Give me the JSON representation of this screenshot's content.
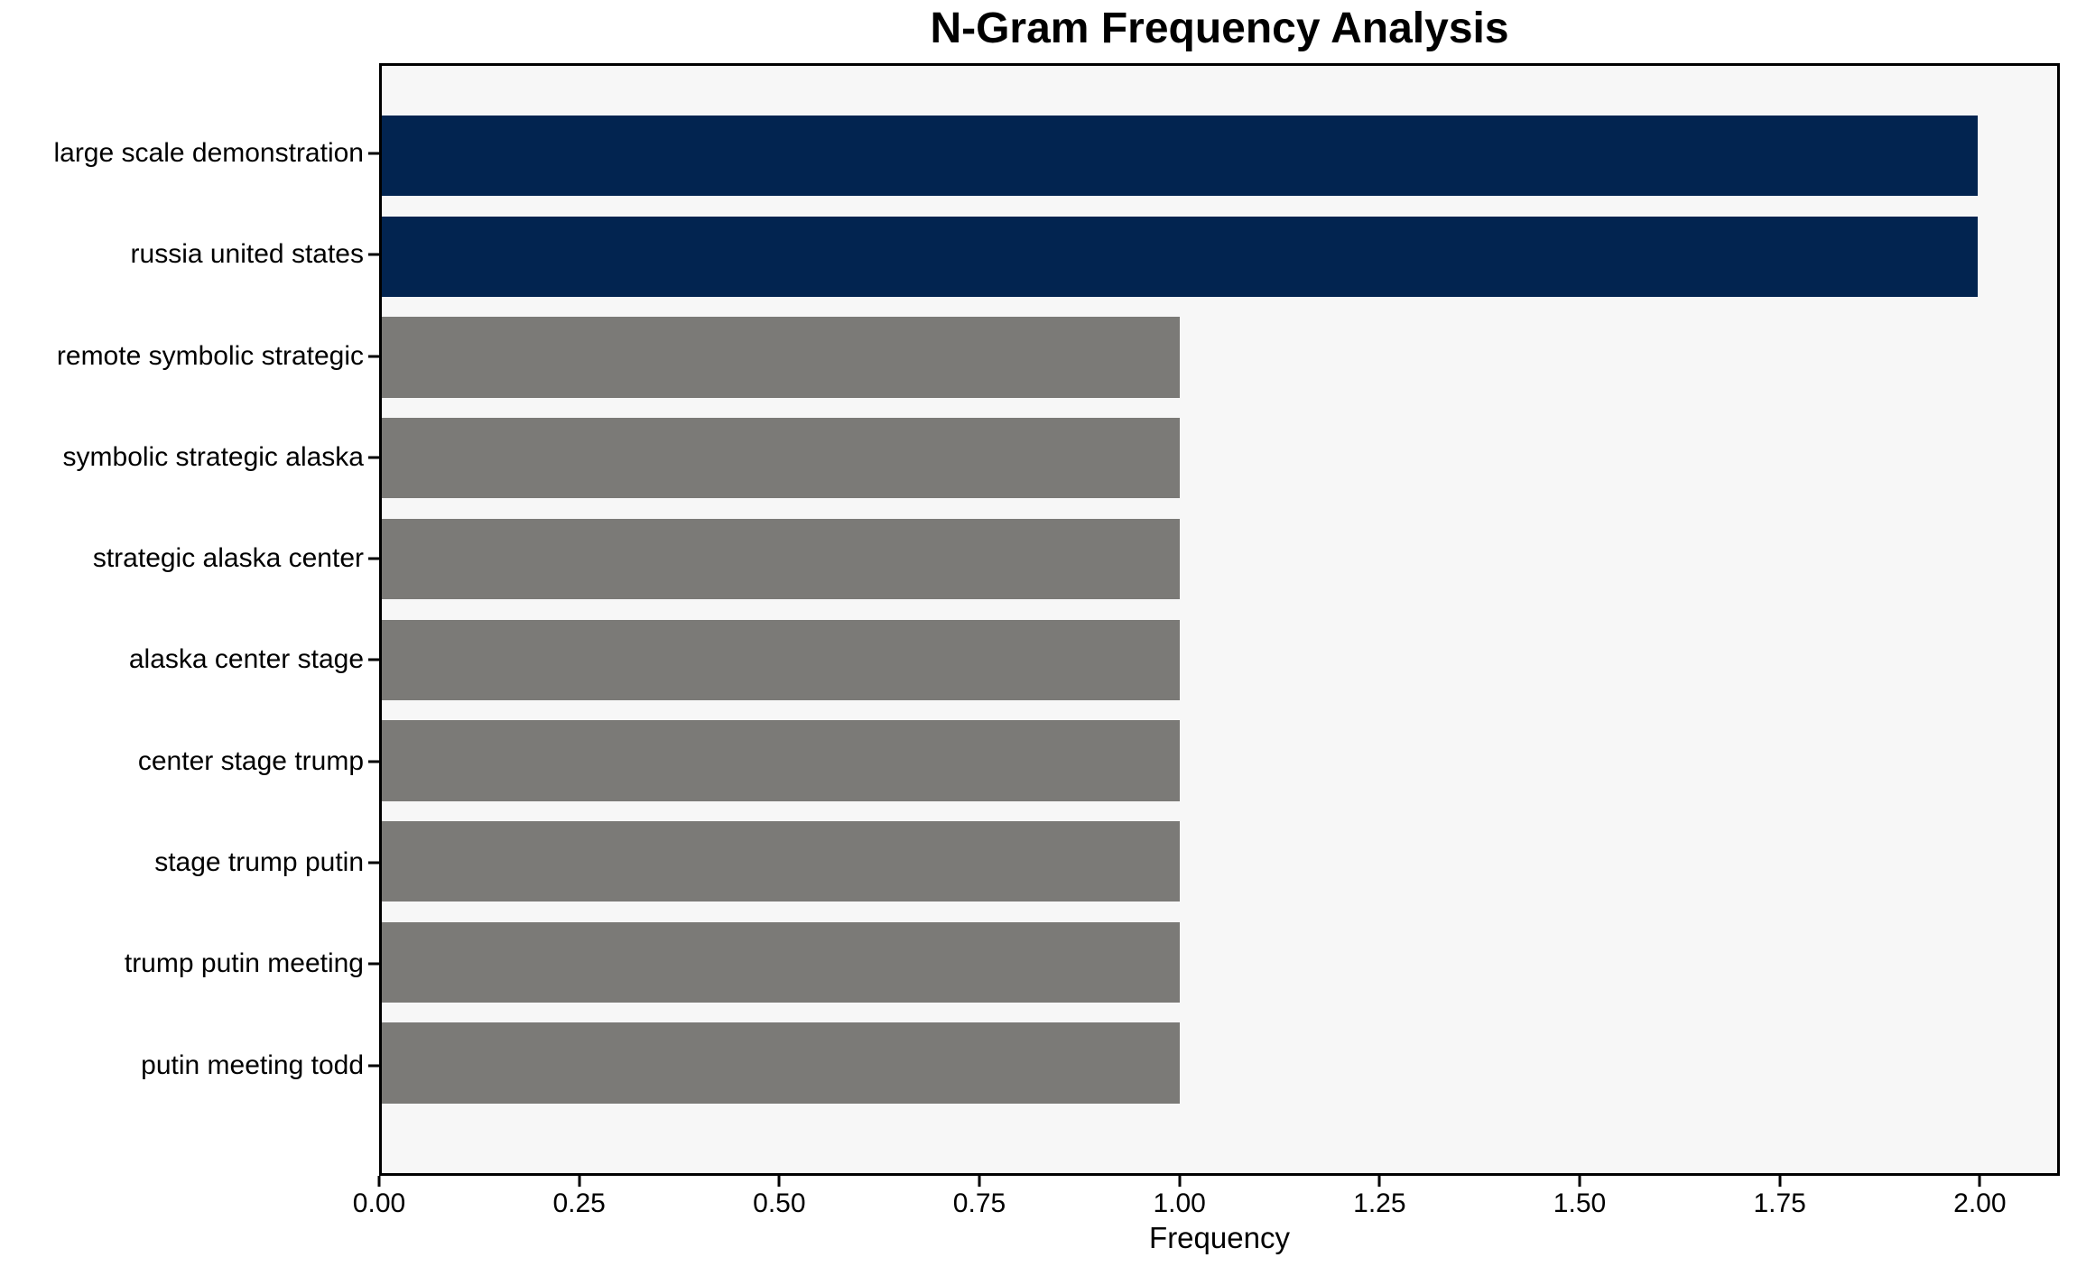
{
  "chart_data": {
    "type": "bar",
    "orientation": "horizontal",
    "title": "N-Gram Frequency Analysis",
    "xlabel": "Frequency",
    "ylabel": "",
    "categories": [
      "large scale demonstration",
      "russia united states",
      "remote symbolic strategic",
      "symbolic strategic alaska",
      "strategic alaska center",
      "alaska center stage",
      "center stage trump",
      "stage trump putin",
      "trump putin meeting",
      "putin meeting todd"
    ],
    "values": [
      2,
      2,
      1,
      1,
      1,
      1,
      1,
      1,
      1,
      1
    ],
    "bar_colors": [
      "#022450",
      "#022450",
      "#7b7a77",
      "#7b7a77",
      "#7b7a77",
      "#7b7a77",
      "#7b7a77",
      "#7b7a77",
      "#7b7a77",
      "#7b7a77"
    ],
    "x_tick_labels": [
      "0.00",
      "0.25",
      "0.50",
      "0.75",
      "1.00",
      "1.25",
      "1.50",
      "1.75",
      "2.00"
    ],
    "x_tick_values": [
      0,
      0.25,
      0.5,
      0.75,
      1.0,
      1.25,
      1.5,
      1.75,
      2.0
    ],
    "xlim": [
      0,
      2.1
    ],
    "grid": false,
    "legend": false,
    "colors": {
      "highlight_bar": "#022450",
      "default_bar": "#7b7a77",
      "plot_background": "#f7f7f7",
      "figure_background": "#ffffff",
      "axis": "#000000",
      "text": "#000000"
    }
  }
}
